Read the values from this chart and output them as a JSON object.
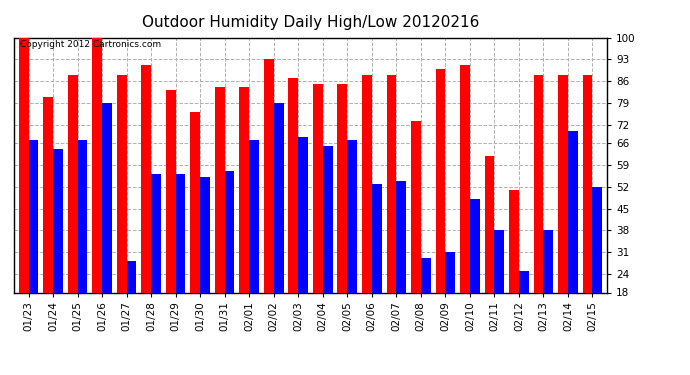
{
  "title": "Outdoor Humidity Daily High/Low 20120216",
  "copyright": "Copyright 2012 Cartronics.com",
  "dates": [
    "01/23",
    "01/24",
    "01/25",
    "01/26",
    "01/27",
    "01/28",
    "01/29",
    "01/30",
    "01/31",
    "02/01",
    "02/02",
    "02/03",
    "02/04",
    "02/05",
    "02/06",
    "02/07",
    "02/08",
    "02/09",
    "02/10",
    "02/11",
    "02/12",
    "02/13",
    "02/14",
    "02/15"
  ],
  "highs": [
    100,
    81,
    88,
    100,
    88,
    91,
    83,
    76,
    84,
    84,
    93,
    87,
    85,
    85,
    88,
    88,
    73,
    90,
    91,
    62,
    51,
    88,
    88,
    88
  ],
  "lows": [
    67,
    64,
    67,
    79,
    28,
    56,
    56,
    55,
    57,
    67,
    79,
    68,
    65,
    67,
    53,
    54,
    29,
    31,
    48,
    38,
    25,
    38,
    70,
    52
  ],
  "high_color": "#ff0000",
  "low_color": "#0000ff",
  "background_color": "#ffffff",
  "grid_color": "#b0b0b0",
  "yticks": [
    18,
    24,
    31,
    38,
    45,
    52,
    59,
    66,
    72,
    79,
    86,
    93,
    100
  ],
  "ymin": 18,
  "ymax": 100,
  "title_fontsize": 11,
  "tick_fontsize": 7.5,
  "copyright_fontsize": 6.5
}
